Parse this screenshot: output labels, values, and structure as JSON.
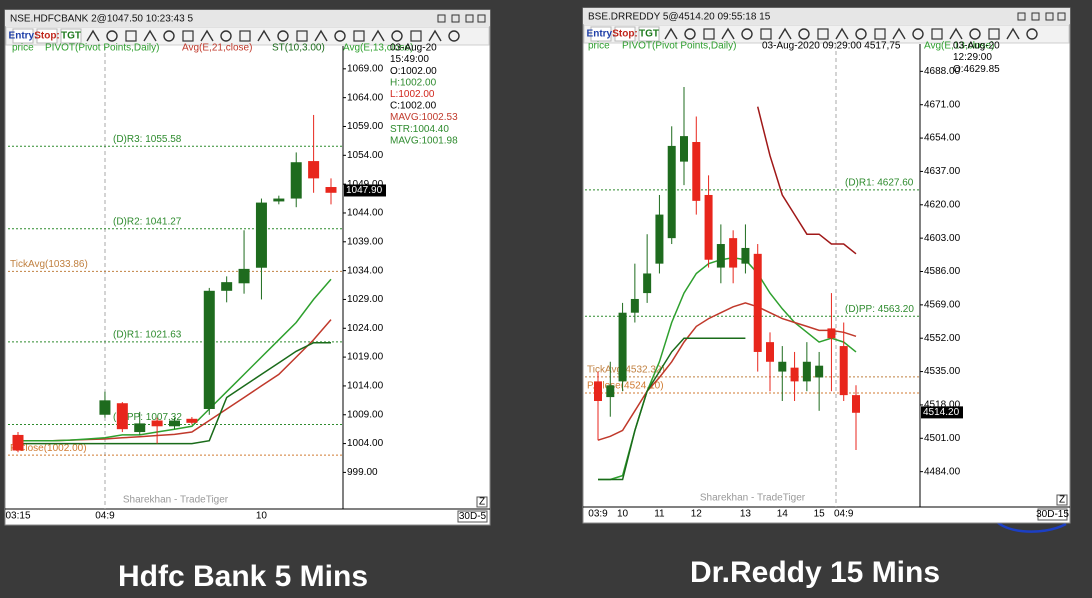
{
  "captions": [
    "Hdfc Bank 5 Mins",
    "Dr.Reddy 15 Mins"
  ],
  "chart_data": [
    {
      "type": "candlestick",
      "window_title": "NSE.HDFCBANK 2@1047.50 10:23:43 5",
      "toolbar": [
        "Entry:",
        "Stop:",
        "TGT"
      ],
      "legend": [
        {
          "text": "price",
          "color": "#2e9e2e"
        },
        {
          "text": "PIVOT(Pivot Points,Daily)",
          "color": "#2e9e2e"
        }
      ],
      "categories": [
        "03:15",
        null,
        null,
        null,
        null,
        "04:9",
        null,
        null,
        null,
        null,
        null,
        null,
        null,
        null,
        "10",
        null,
        null,
        null,
        null
      ],
      "open": [
        1005.5,
        null,
        null,
        null,
        null,
        1009,
        1011,
        1006,
        1008,
        1007,
        1008.3,
        1010,
        1030.5,
        1031.8,
        1034.5,
        1046,
        1046.5,
        1053,
        1048.5
      ],
      "high": [
        1006,
        null,
        null,
        null,
        null,
        1013,
        1011.2,
        1009.5,
        1008.5,
        1008.5,
        1008.6,
        1031,
        1033,
        1041,
        1046.5,
        1047,
        1054.5,
        1061,
        1050
      ],
      "low": [
        1002.5,
        null,
        null,
        null,
        null,
        1008.5,
        1006,
        1005.5,
        1004,
        1006.5,
        1007.3,
        1009,
        1028.5,
        1030,
        1029,
        1045.5,
        1045,
        1047.5,
        1045.5
      ],
      "close": [
        1002.8,
        null,
        null,
        null,
        null,
        1011.5,
        1006.5,
        1007.5,
        1007,
        1008,
        1007.6,
        1030.5,
        1032,
        1034.3,
        1045.8,
        1046.5,
        1052.8,
        1050,
        1047.5
      ],
      "up_color": "#1e6b1e",
      "down_color": "#e8261c",
      "series": [
        {
          "name": "Avg(E,21,close)",
          "color": "#c0392b",
          "values": [
            1004.5,
            1004.5,
            1004.5,
            1004.6,
            1004.7,
            1004.8,
            1005,
            1005.2,
            1005.4,
            1005.6,
            1006,
            1008,
            1010,
            1012,
            1014,
            1016,
            1019,
            1022,
            1025.5
          ]
        },
        {
          "name": "ST(10,3.00)",
          "color": "#1a6b1a",
          "values": [
            1004,
            1004,
            1004,
            1004,
            1004,
            1004,
            1004,
            1004,
            1004,
            1004,
            1004,
            1004.5,
            1012,
            1014,
            1016,
            1018,
            1020,
            1021.5,
            1021.5
          ]
        },
        {
          "name": "Avg(E,13,close)",
          "color": "#2ea02e",
          "values": [
            1004.5,
            1004.5,
            1004.5,
            1004.6,
            1004.8,
            1005,
            1005.5,
            1005.5,
            1006,
            1006.5,
            1007,
            1010,
            1013,
            1016,
            1019,
            1022,
            1025,
            1029,
            1032.5
          ]
        }
      ],
      "levels": [
        {
          "value": 1055.58,
          "label": "(D)R3: 1055.58",
          "color": "#2e8b2e"
        },
        {
          "value": 1041.27,
          "label": "(D)R2: 1041.27",
          "color": "#2e8b2e"
        },
        {
          "value": 1021.63,
          "label": "(D)R1: 1021.63",
          "color": "#2e8b2e"
        },
        {
          "value": 1007.32,
          "label": "(D)PP: 1007.32",
          "color": "#2e8b2e"
        },
        {
          "value": 1033.86,
          "label": "TickAvg(1033.86)",
          "color": "#c08040"
        },
        {
          "value": 1002.0,
          "label": "P.Close(1002.00)",
          "color": "#d07a30"
        }
      ],
      "info": [
        {
          "text": "03-Aug-20",
          "color": "#000000"
        },
        {
          "text": "15:49:00",
          "color": "#000000"
        },
        {
          "text": "O:1002.00",
          "color": "#000000"
        },
        {
          "text": "H:1002.00",
          "color": "#2e8b2e"
        },
        {
          "text": "L:1002.00",
          "color": "#d0261c"
        },
        {
          "text": "C:1002.00",
          "color": "#000000"
        },
        {
          "text": "MAVG:1002.53",
          "color": "#c0392b"
        },
        {
          "text": "STR:1004.40",
          "color": "#2e8b2e"
        },
        {
          "text": "MAVG:1001.98",
          "color": "#2e8b2e"
        }
      ],
      "last_price": {
        "value": 1047.9,
        "label": "1047.90"
      },
      "ylim": [
        993,
        1074
      ],
      "yticks": [
        {
          "value": 999,
          "label": "999.00"
        },
        {
          "value": 1004,
          "label": "1004.00"
        },
        {
          "value": 1009,
          "label": "1009.00"
        },
        {
          "value": 1014,
          "label": "1014.00"
        },
        {
          "value": 1019,
          "label": "1019.00"
        },
        {
          "value": 1024,
          "label": "1024.00"
        },
        {
          "value": 1029,
          "label": "1029.00"
        },
        {
          "value": 1034,
          "label": "1034.00"
        },
        {
          "value": 1039,
          "label": "1039.00"
        },
        {
          "value": 1044,
          "label": "1044.00"
        },
        {
          "value": 1049,
          "label": "1049.00"
        },
        {
          "value": 1054,
          "label": "1054.00"
        },
        {
          "value": 1059,
          "label": "1059.00"
        },
        {
          "value": 1064,
          "label": "1064.00"
        },
        {
          "value": 1069,
          "label": "1069.00"
        }
      ],
      "watermark": "Sharekhan - TradeTiger",
      "period": "30D-5",
      "corner": "Z"
    },
    {
      "type": "candlestick",
      "window_title": "BSE.DRREDDY 5@4514.20 09:55:18 15",
      "toolbar": [
        "Entry:",
        "Stop:",
        "TGT"
      ],
      "legend": [
        {
          "text": "price",
          "color": "#2e9e2e"
        },
        {
          "text": "PIVOT(Pivot Points,Daily)",
          "color": "#2e9e2e"
        }
      ],
      "header": "03-Aug-2020 09:29:00 4517,75",
      "categories": [
        "03:9",
        null,
        "10",
        null,
        null,
        "11",
        null,
        null,
        "12",
        null,
        null,
        null,
        "13",
        null,
        null,
        "14",
        null,
        null,
        "15",
        null,
        "04:9",
        null
      ],
      "open": [
        4530,
        4522,
        4530,
        4565,
        4575,
        4590,
        4603,
        4642,
        4652,
        4625,
        4588,
        4603,
        4590,
        4595,
        4550,
        4535,
        4537,
        4530,
        4532,
        4557,
        4548,
        4523
      ],
      "high": [
        4535,
        4540,
        4570,
        4590,
        4605,
        4625,
        4660,
        4680,
        4665,
        4635,
        4610,
        4607,
        4610,
        4600,
        4555,
        4548,
        4545,
        4550,
        4545,
        4575,
        4560,
        4528
      ],
      "low": [
        4500,
        4512,
        4525,
        4560,
        4570,
        4585,
        4600,
        4630,
        4615,
        4588,
        4580,
        4580,
        4585,
        4535,
        4525,
        4520,
        4520,
        4525,
        4515,
        4525,
        4520,
        4495
      ],
      "close": [
        4520,
        4528,
        4565,
        4572,
        4585,
        4615,
        4650,
        4655,
        4622,
        4592,
        4600,
        4588,
        4598,
        4545,
        4540,
        4540,
        4530,
        4540,
        4538,
        4552,
        4523,
        4514
      ],
      "up_color": "#1e6b1e",
      "down_color": "#e8261c",
      "series": [
        {
          "name": "Avg(E,13,close)",
          "color": "#2ea02e",
          "values": [
            4480,
            4480,
            4482,
            4505,
            4525,
            4540,
            4560,
            4575,
            4585,
            4590,
            4592,
            4593,
            4592,
            4585,
            4575,
            4567,
            4560,
            4555,
            4550,
            4552,
            4550,
            4545
          ]
        },
        {
          "color": "#c0392b",
          "values": [
            4500,
            4502,
            4505,
            4515,
            4525,
            4532,
            4540,
            4550,
            4558,
            4562,
            4565,
            4568,
            4570,
            4568,
            4565,
            4562,
            4560,
            4558,
            4556,
            4556,
            4555,
            4553
          ]
        },
        {
          "color": "#1a6b1a",
          "values": [
            4480,
            4480,
            4480,
            4505,
            4525,
            4535,
            4545,
            4552,
            4552,
            4552,
            4552,
            4552,
            4552,
            null,
            null,
            null,
            null,
            null,
            null,
            null,
            null,
            null
          ]
        },
        {
          "color": "#a01818",
          "values": [
            null,
            null,
            null,
            null,
            null,
            null,
            null,
            null,
            null,
            null,
            null,
            null,
            null,
            4670,
            4645,
            4625,
            4615,
            4605,
            4605,
            4600,
            4600,
            4595
          ]
        }
      ],
      "levels": [
        {
          "value": 4627.6,
          "label": "(D)R1: 4627.60",
          "color": "#2e8b2e"
        },
        {
          "value": 4563.2,
          "label": "(D)PP: 4563.20",
          "color": "#2e8b2e"
        },
        {
          "value": 4532.32,
          "label": "TickAvg(4532.32)",
          "color": "#c08040"
        },
        {
          "value": 4524.1,
          "label": "P.Close(4524.10)",
          "color": "#d07a30"
        }
      ],
      "info": [
        {
          "text": "03-Aug-20",
          "color": "#000000"
        },
        {
          "text": "12:29:00",
          "color": "#000000"
        },
        {
          "text": "O:4629.85",
          "color": "#000000"
        }
      ],
      "last_price": {
        "value": 4514.2,
        "label": "4514.20"
      },
      "ylim": [
        4467,
        4705
      ],
      "yticks": [
        {
          "value": 4484,
          "label": "4484.00"
        },
        {
          "value": 4501,
          "label": "4501.00"
        },
        {
          "value": 4518,
          "label": "4518.00"
        },
        {
          "value": 4535,
          "label": "4535.00"
        },
        {
          "value": 4552,
          "label": "4552.00"
        },
        {
          "value": 4569,
          "label": "4569.00"
        },
        {
          "value": 4586,
          "label": "4586.00"
        },
        {
          "value": 4603,
          "label": "4603.00"
        },
        {
          "value": 4620,
          "label": "4620.00"
        },
        {
          "value": 4637,
          "label": "4637.00"
        },
        {
          "value": 4654,
          "label": "4654.00"
        },
        {
          "value": 4671,
          "label": "4671.00"
        },
        {
          "value": 4688,
          "label": "4688.00"
        }
      ],
      "watermark": "Sharekhan - TradeTiger",
      "period": "30D-15",
      "corner": "Z"
    }
  ]
}
